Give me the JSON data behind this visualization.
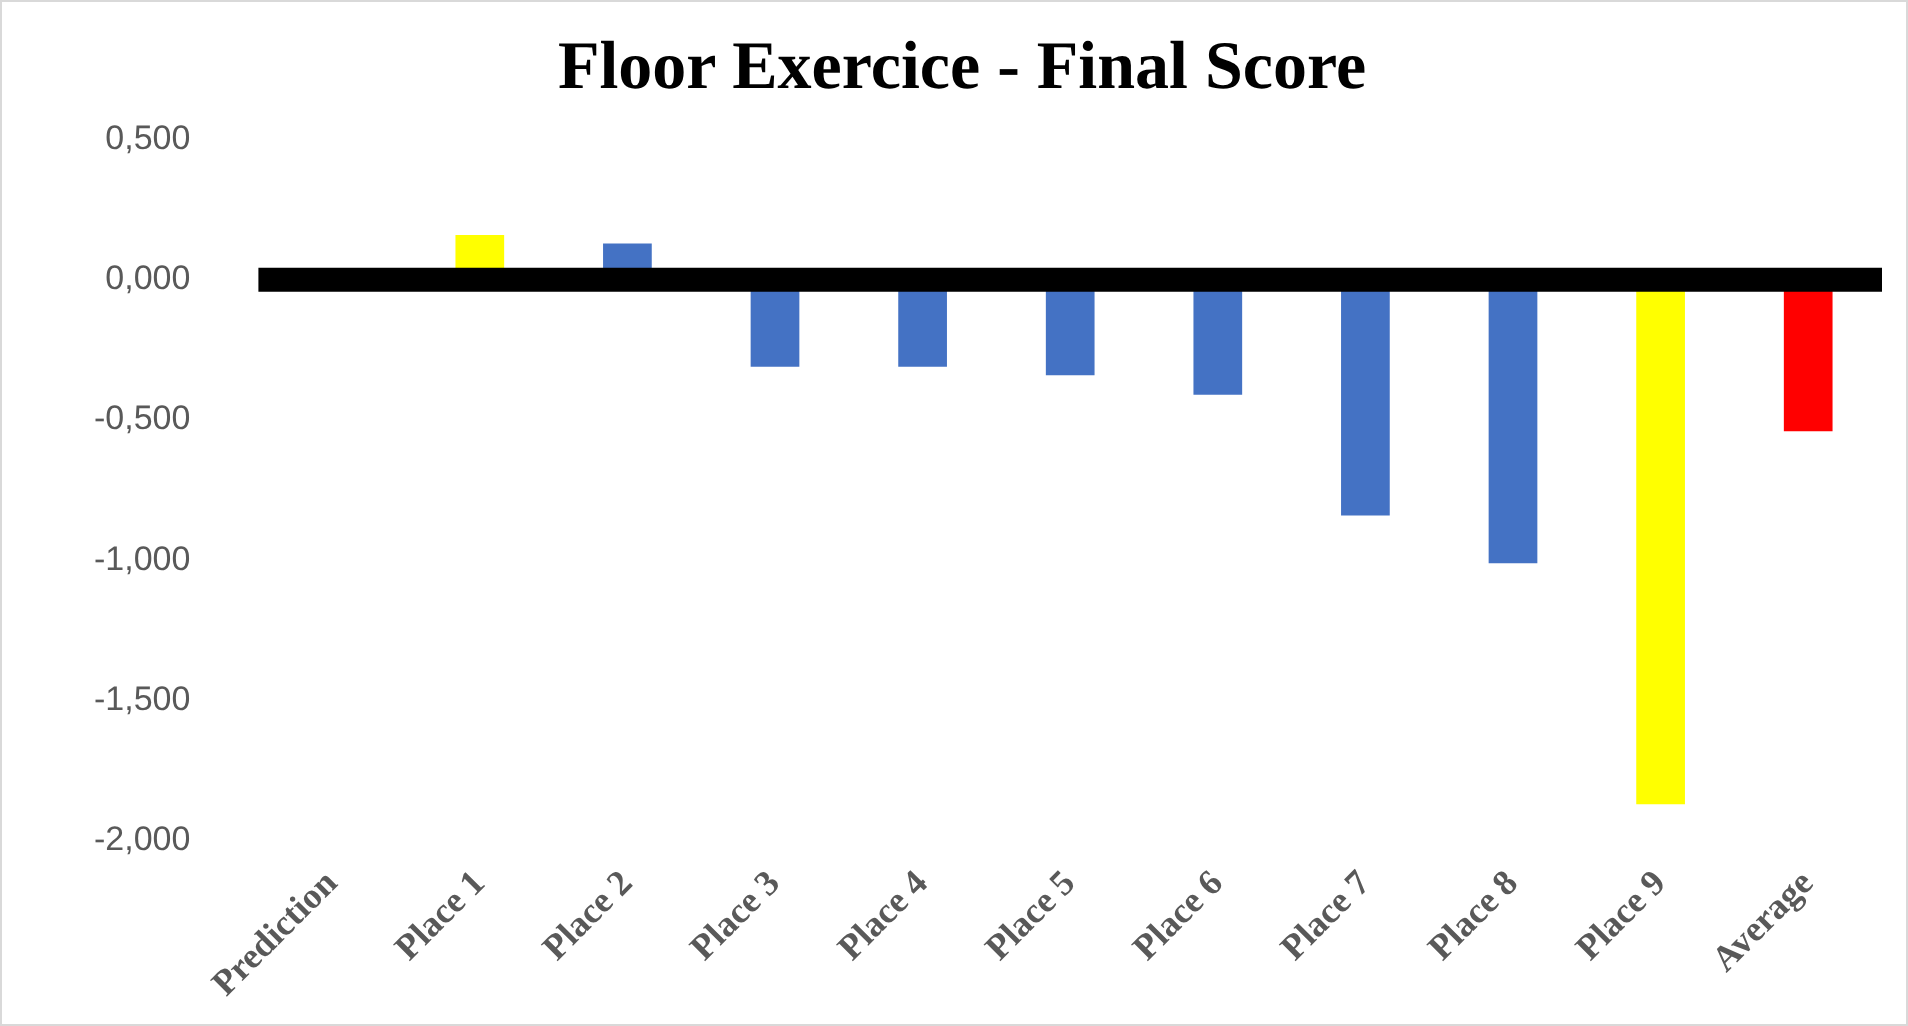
{
  "chart_data": {
    "type": "bar",
    "title": "Floor Exercice - Final Score",
    "categories": [
      "Prediction",
      "Place 1",
      "Place 2",
      "Place 3",
      "Place 4",
      "Place 5",
      "Place 6",
      "Place 7",
      "Place 8",
      "Place 9",
      "Average"
    ],
    "values": [
      0,
      0.16,
      0.13,
      -0.31,
      -0.31,
      -0.34,
      -0.41,
      -0.84,
      -1.01,
      -1.87,
      -0.54
    ],
    "colors": [
      "#4472c4",
      "#ffff00",
      "#4472c4",
      "#4472c4",
      "#4472c4",
      "#4472c4",
      "#4472c4",
      "#4472c4",
      "#4472c4",
      "#ffff00",
      "#ff0000"
    ],
    "ylim": [
      -2,
      0.5
    ],
    "yticks": [
      {
        "value": 0.5,
        "label": "0,500"
      },
      {
        "value": 0,
        "label": "0,000"
      },
      {
        "value": -0.5,
        "label": "-0,500"
      },
      {
        "value": -1,
        "label": "-1,000"
      },
      {
        "value": -1.5,
        "label": "-1,500"
      },
      {
        "value": -2,
        "label": "-2,000"
      }
    ],
    "ref_lines": [
      {
        "axis": "y",
        "value": 0,
        "color": "#000000"
      }
    ],
    "grid": false,
    "legend": false
  }
}
